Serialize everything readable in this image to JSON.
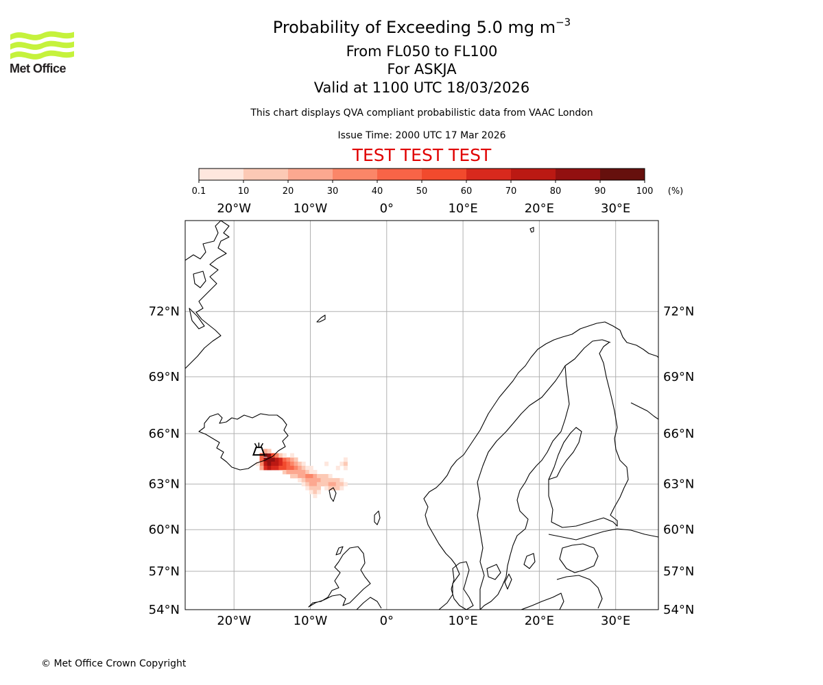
{
  "header": {
    "logo_text": "Met Office",
    "title_prefix": "Probability of Exceeding 5.0 mg m",
    "title_exponent": "−3",
    "flight_levels": "From FL050 to FL100",
    "volcano": "For ASKJA",
    "valid_time": "Valid at 1100 UTC 18/03/2026",
    "description": "This chart displays QVA compliant probabilistic data from VAAC London",
    "issue_time": "Issue Time: 2000 UTC 17 Mar 2026",
    "test_banner": "TEST TEST TEST"
  },
  "colors": {
    "test_banner": "#e00000",
    "logo": "#c5f23c",
    "logo_text": "#231f20",
    "coast": "#000000",
    "grid": "#b0b0b0"
  },
  "chart_data": {
    "type": "heatmap",
    "title": "Probability of Exceeding 5.0 mg m−3",
    "colorbar": {
      "bins": [
        {
          "from": 0.1,
          "to": 10,
          "color": "#fee7de"
        },
        {
          "from": 10,
          "to": 20,
          "color": "#fcc9b5"
        },
        {
          "from": 20,
          "to": 30,
          "color": "#fca890"
        },
        {
          "from": 30,
          "to": 40,
          "color": "#fb8668"
        },
        {
          "from": 40,
          "to": 50,
          "color": "#f86447"
        },
        {
          "from": 50,
          "to": 60,
          "color": "#f24a2d"
        },
        {
          "from": 60,
          "to": 70,
          "color": "#d8291d"
        },
        {
          "from": 70,
          "to": 80,
          "color": "#bb1913"
        },
        {
          "from": 80,
          "to": 90,
          "color": "#921010"
        },
        {
          "from": 90,
          "to": 100,
          "color": "#66100d"
        }
      ],
      "tick_labels": [
        "0.1",
        "10",
        "20",
        "30",
        "40",
        "50",
        "60",
        "70",
        "80",
        "90",
        "100"
      ],
      "unit": "(%)"
    },
    "map": {
      "lon_range": [
        -26.4,
        35.6
      ],
      "lat_range": [
        54.0,
        75.5
      ],
      "lon_ticks": [
        -20,
        -10,
        0,
        10,
        20,
        30
      ],
      "lon_tick_labels": [
        "20°W",
        "10°W",
        "0°",
        "10°E",
        "20°E",
        "30°E"
      ],
      "lat_ticks": [
        72,
        69,
        66,
        63,
        60,
        57,
        54
      ],
      "lat_tick_labels": [
        "72°N",
        "69°N",
        "66°N",
        "63°N",
        "60°N",
        "57°N",
        "54°N"
      ],
      "source_volcano": {
        "name": "ASKJA",
        "lon": -16.75,
        "lat": 65.05
      },
      "plume_cells": [
        {
          "lon": -15.9,
          "lat": 64.8,
          "p": 92
        },
        {
          "lon": -15.4,
          "lat": 64.75,
          "p": 85
        },
        {
          "lon": -15.9,
          "lat": 64.5,
          "p": 80
        },
        {
          "lon": -15.4,
          "lat": 64.5,
          "p": 88
        },
        {
          "lon": -14.9,
          "lat": 64.5,
          "p": 82
        },
        {
          "lon": -14.4,
          "lat": 64.5,
          "p": 72
        },
        {
          "lon": -13.9,
          "lat": 64.5,
          "p": 60
        },
        {
          "lon": -13.4,
          "lat": 64.5,
          "p": 48
        },
        {
          "lon": -12.9,
          "lat": 64.5,
          "p": 32
        },
        {
          "lon": -12.4,
          "lat": 64.5,
          "p": 22
        },
        {
          "lon": -11.9,
          "lat": 64.5,
          "p": 12
        },
        {
          "lon": -16.4,
          "lat": 64.5,
          "p": 40
        },
        {
          "lon": -15.9,
          "lat": 64.25,
          "p": 75
        },
        {
          "lon": -15.4,
          "lat": 64.25,
          "p": 82
        },
        {
          "lon": -14.9,
          "lat": 64.25,
          "p": 78
        },
        {
          "lon": -14.4,
          "lat": 64.25,
          "p": 70
        },
        {
          "lon": -13.9,
          "lat": 64.25,
          "p": 62
        },
        {
          "lon": -13.4,
          "lat": 64.25,
          "p": 55
        },
        {
          "lon": -12.9,
          "lat": 64.25,
          "p": 45
        },
        {
          "lon": -12.4,
          "lat": 64.25,
          "p": 35
        },
        {
          "lon": -11.9,
          "lat": 64.25,
          "p": 22
        },
        {
          "lon": -11.4,
          "lat": 64.25,
          "p": 15
        },
        {
          "lon": -10.9,
          "lat": 64.25,
          "p": 8
        },
        {
          "lon": -16.4,
          "lat": 64.25,
          "p": 30
        },
        {
          "lon": -15.9,
          "lat": 64.0,
          "p": 68
        },
        {
          "lon": -15.4,
          "lat": 64.0,
          "p": 70
        },
        {
          "lon": -14.9,
          "lat": 64.0,
          "p": 66
        },
        {
          "lon": -14.4,
          "lat": 64.0,
          "p": 60
        },
        {
          "lon": -13.9,
          "lat": 64.0,
          "p": 58
        },
        {
          "lon": -13.4,
          "lat": 64.0,
          "p": 52
        },
        {
          "lon": -12.9,
          "lat": 64.0,
          "p": 46
        },
        {
          "lon": -12.4,
          "lat": 64.0,
          "p": 40
        },
        {
          "lon": -11.9,
          "lat": 64.0,
          "p": 30
        },
        {
          "lon": -11.4,
          "lat": 64.0,
          "p": 20
        },
        {
          "lon": -10.9,
          "lat": 64.0,
          "p": 12
        },
        {
          "lon": -10.4,
          "lat": 64.0,
          "p": 6
        },
        {
          "lon": -9.9,
          "lat": 64.0,
          "p": 3
        },
        {
          "lon": -16.4,
          "lat": 64.0,
          "p": 22
        },
        {
          "lon": -13.4,
          "lat": 63.75,
          "p": 12
        },
        {
          "lon": -12.9,
          "lat": 63.75,
          "p": 20
        },
        {
          "lon": -12.4,
          "lat": 63.75,
          "p": 25
        },
        {
          "lon": -11.9,
          "lat": 63.75,
          "p": 28
        },
        {
          "lon": -11.4,
          "lat": 63.75,
          "p": 26
        },
        {
          "lon": -10.9,
          "lat": 63.75,
          "p": 22
        },
        {
          "lon": -10.4,
          "lat": 63.75,
          "p": 15
        },
        {
          "lon": -9.9,
          "lat": 63.75,
          "p": 8
        },
        {
          "lon": -9.4,
          "lat": 63.75,
          "p": 4
        },
        {
          "lon": -12.4,
          "lat": 63.5,
          "p": 10
        },
        {
          "lon": -11.9,
          "lat": 63.5,
          "p": 18
        },
        {
          "lon": -11.4,
          "lat": 63.5,
          "p": 24
        },
        {
          "lon": -10.9,
          "lat": 63.5,
          "p": 28
        },
        {
          "lon": -10.4,
          "lat": 63.5,
          "p": 34
        },
        {
          "lon": -9.9,
          "lat": 63.5,
          "p": 30
        },
        {
          "lon": -9.4,
          "lat": 63.5,
          "p": 22
        },
        {
          "lon": -8.9,
          "lat": 63.5,
          "p": 18
        },
        {
          "lon": -8.4,
          "lat": 63.5,
          "p": 14
        },
        {
          "lon": -7.9,
          "lat": 63.5,
          "p": 10
        },
        {
          "lon": -7.4,
          "lat": 63.5,
          "p": 6
        },
        {
          "lon": -11.4,
          "lat": 63.25,
          "p": 8
        },
        {
          "lon": -10.9,
          "lat": 63.25,
          "p": 16
        },
        {
          "lon": -10.4,
          "lat": 63.25,
          "p": 24
        },
        {
          "lon": -9.9,
          "lat": 63.25,
          "p": 26
        },
        {
          "lon": -9.4,
          "lat": 63.25,
          "p": 22
        },
        {
          "lon": -8.9,
          "lat": 63.25,
          "p": 20
        },
        {
          "lon": -8.4,
          "lat": 63.25,
          "p": 18
        },
        {
          "lon": -7.9,
          "lat": 63.25,
          "p": 16
        },
        {
          "lon": -7.4,
          "lat": 63.25,
          "p": 14
        },
        {
          "lon": -6.9,
          "lat": 63.25,
          "p": 12
        },
        {
          "lon": -6.4,
          "lat": 63.25,
          "p": 10
        },
        {
          "lon": -5.9,
          "lat": 63.25,
          "p": 6
        },
        {
          "lon": -10.9,
          "lat": 63.0,
          "p": 8
        },
        {
          "lon": -10.4,
          "lat": 63.0,
          "p": 14
        },
        {
          "lon": -9.9,
          "lat": 63.0,
          "p": 22
        },
        {
          "lon": -9.4,
          "lat": 63.0,
          "p": 20
        },
        {
          "lon": -8.9,
          "lat": 63.0,
          "p": 16
        },
        {
          "lon": -8.4,
          "lat": 63.0,
          "p": 14
        },
        {
          "lon": -7.9,
          "lat": 63.0,
          "p": 18
        },
        {
          "lon": -7.4,
          "lat": 63.0,
          "p": 20
        },
        {
          "lon": -6.9,
          "lat": 63.0,
          "p": 22
        },
        {
          "lon": -6.4,
          "lat": 63.0,
          "p": 18
        },
        {
          "lon": -5.9,
          "lat": 63.0,
          "p": 12
        },
        {
          "lon": -5.4,
          "lat": 63.0,
          "p": 6
        },
        {
          "lon": -10.4,
          "lat": 62.75,
          "p": 6
        },
        {
          "lon": -9.9,
          "lat": 62.75,
          "p": 12
        },
        {
          "lon": -9.4,
          "lat": 62.75,
          "p": 16
        },
        {
          "lon": -8.9,
          "lat": 62.75,
          "p": 10
        },
        {
          "lon": -7.9,
          "lat": 62.75,
          "p": 8
        },
        {
          "lon": -7.4,
          "lat": 62.75,
          "p": 12
        },
        {
          "lon": -6.9,
          "lat": 62.75,
          "p": 14
        },
        {
          "lon": -6.4,
          "lat": 62.75,
          "p": 10
        },
        {
          "lon": -5.9,
          "lat": 62.75,
          "p": 6
        },
        {
          "lon": -9.9,
          "lat": 62.5,
          "p": 8
        },
        {
          "lon": -9.4,
          "lat": 62.5,
          "p": 12
        },
        {
          "lon": -8.9,
          "lat": 62.5,
          "p": 6
        },
        {
          "lon": -9.4,
          "lat": 62.25,
          "p": 6
        },
        {
          "lon": -5.9,
          "lat": 64.25,
          "p": 5
        },
        {
          "lon": -5.4,
          "lat": 64.25,
          "p": 10
        },
        {
          "lon": -5.4,
          "lat": 64.5,
          "p": 8
        },
        {
          "lon": -5.4,
          "lat": 64.0,
          "p": 6
        },
        {
          "lon": -6.4,
          "lat": 64.0,
          "p": 4
        },
        {
          "lon": -7.9,
          "lat": 64.25,
          "p": 3
        },
        {
          "lon": -16.9,
          "lat": 64.25,
          "p": 8
        },
        {
          "lon": -16.4,
          "lat": 64.75,
          "p": 45
        },
        {
          "lon": -14.9,
          "lat": 64.75,
          "p": 58
        },
        {
          "lon": -14.4,
          "lat": 64.75,
          "p": 35
        },
        {
          "lon": -13.9,
          "lat": 64.75,
          "p": 18
        },
        {
          "lon": -13.4,
          "lat": 64.75,
          "p": 8
        },
        {
          "lon": -15.9,
          "lat": 65.0,
          "p": 20
        },
        {
          "lon": -15.4,
          "lat": 65.0,
          "p": 12
        },
        {
          "lon": -12.4,
          "lat": 64.75,
          "p": 5
        }
      ]
    }
  },
  "footer": {
    "copyright": "© Met Office Crown Copyright"
  }
}
